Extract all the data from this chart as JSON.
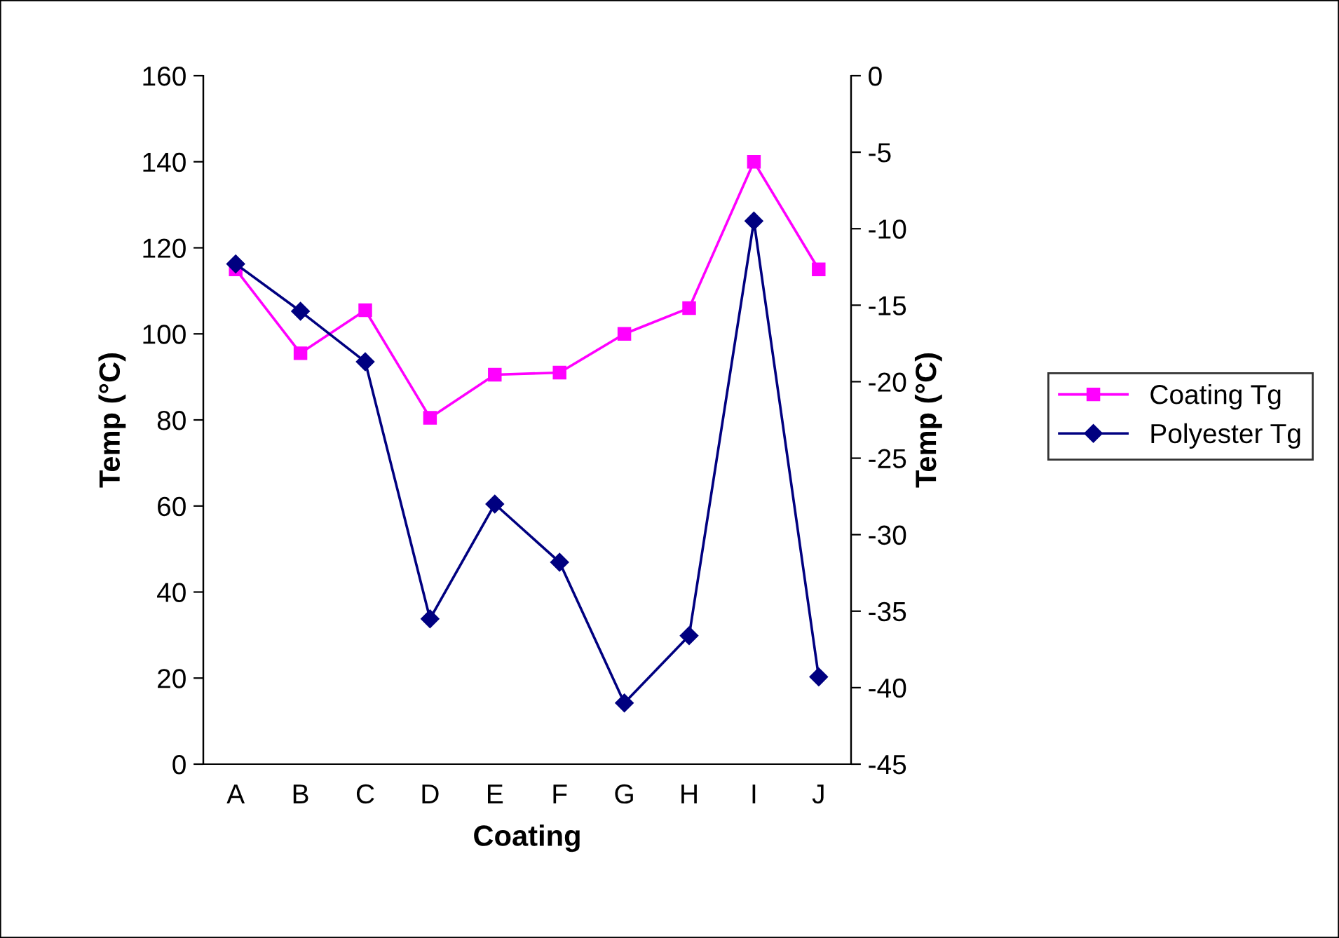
{
  "chart_data": {
    "type": "line",
    "xlabel": "Coating",
    "ylabel": "Temp (°C)",
    "y2label": "Temp (°C)",
    "categories": [
      "A",
      "B",
      "C",
      "D",
      "E",
      "F",
      "G",
      "H",
      "I",
      "J"
    ],
    "series": [
      {
        "name": "Coating Tg",
        "color": "#ff00ff",
        "marker": "square",
        "values": [
          115,
          95.5,
          105.5,
          80.5,
          90.5,
          91,
          100,
          106,
          140,
          115
        ]
      },
      {
        "name": "Polyester Tg",
        "color": "#000080",
        "marker": "diamond",
        "axis": "y2",
        "values": [
          -12.3,
          -15.4,
          -18.7,
          -35.5,
          -28,
          -31.8,
          -41,
          -36.6,
          -9.5,
          -39.3
        ]
      }
    ],
    "ylim": [
      0,
      160
    ],
    "yticks": [
      0,
      20,
      40,
      60,
      80,
      100,
      120,
      140,
      160
    ],
    "y2lim": [
      -45,
      0
    ],
    "y2ticks": [
      -45,
      -40,
      -35,
      -30,
      -25,
      -20,
      -15,
      -10,
      -5,
      0
    ],
    "grid": false,
    "legend": "right",
    "line_style": "solid"
  }
}
